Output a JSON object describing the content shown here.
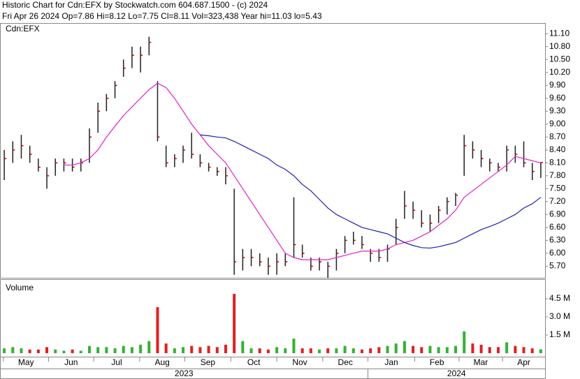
{
  "chart_data": {
    "type": "ohlc",
    "title": "Historic Chart for Cdn:EFX by Stockwatch.com 604.687.1500 - (c) 2024",
    "subtitle": "Fri Apr 26 2024  Op=7.86  Hi=8.12  Lo=7.75  Cl=8.11  Vol=323,438  Year hi=11.03  lo=5.43",
    "symbol_label": "Cdn:EFX",
    "volume_label": "Volume",
    "bar_color": "#202020",
    "close_color": "#c00000",
    "up_color": "#33b233",
    "down_color": "#e02020",
    "xlim": [
      -0.5,
      63.5
    ],
    "high": [
      8.4,
      8.6,
      8.75,
      8.5,
      8.2,
      8.0,
      8.2,
      8.2,
      8.2,
      8.2,
      8.9,
      9.5,
      9.7,
      10.0,
      10.5,
      10.8,
      10.8,
      11.03,
      10.0,
      8.5,
      8.3,
      8.5,
      8.8,
      8.3,
      8.1,
      8.0,
      8.0,
      7.5,
      6.1,
      6.1,
      6.0,
      5.9,
      6.0,
      6.0,
      7.3,
      6.2,
      5.9,
      5.9,
      5.8,
      6.1,
      6.4,
      6.5,
      6.4,
      6.1,
      6.1,
      6.2,
      6.8,
      7.45,
      7.2,
      7.0,
      6.9,
      7.1,
      7.3,
      7.4,
      8.75,
      8.6,
      8.4,
      8.2,
      8.1,
      8.5,
      8.5,
      8.6,
      8.1,
      8.12
    ],
    "low": [
      7.7,
      8.1,
      8.2,
      8.1,
      7.9,
      7.5,
      7.8,
      7.9,
      7.9,
      7.9,
      8.1,
      8.8,
      9.3,
      9.6,
      10.1,
      10.3,
      10.2,
      10.6,
      8.6,
      8.0,
      8.0,
      8.1,
      8.2,
      8.0,
      7.9,
      7.8,
      7.6,
      5.5,
      5.6,
      5.7,
      5.7,
      5.5,
      5.5,
      5.7,
      5.9,
      5.9,
      5.6,
      5.6,
      5.43,
      5.6,
      6.0,
      6.2,
      6.1,
      5.8,
      5.8,
      5.8,
      6.2,
      6.8,
      6.8,
      6.6,
      6.5,
      6.7,
      6.9,
      7.1,
      7.8,
      8.2,
      8.0,
      7.9,
      7.9,
      7.9,
      8.1,
      8.0,
      7.7,
      7.75
    ],
    "close": [
      8.2,
      8.4,
      8.5,
      8.3,
      8.0,
      7.8,
      8.1,
      8.1,
      8.0,
      8.1,
      8.7,
      9.3,
      9.6,
      9.9,
      10.3,
      10.6,
      10.6,
      10.9,
      8.7,
      8.1,
      8.2,
      8.4,
      8.3,
      8.1,
      8.0,
      7.9,
      7.8,
      5.8,
      5.9,
      5.9,
      5.8,
      5.7,
      5.8,
      5.8,
      6.2,
      6.0,
      5.7,
      5.8,
      5.7,
      6.0,
      6.3,
      6.3,
      6.2,
      6.0,
      5.9,
      6.1,
      6.6,
      7.1,
      7.0,
      6.7,
      6.7,
      7.0,
      7.2,
      7.35,
      8.5,
      8.4,
      8.2,
      8.1,
      8.0,
      8.4,
      8.3,
      8.1,
      7.9,
      8.11
    ],
    "volume": [
      0.4,
      0.5,
      0.4,
      0.3,
      0.3,
      0.5,
      0.3,
      0.2,
      0.3,
      0.2,
      0.6,
      0.5,
      0.5,
      0.4,
      0.6,
      0.5,
      0.7,
      1.0,
      3.8,
      0.8,
      0.4,
      0.5,
      0.6,
      0.5,
      0.6,
      0.5,
      0.7,
      4.9,
      1.0,
      0.4,
      0.4,
      0.3,
      0.5,
      0.4,
      1.2,
      0.4,
      0.4,
      0.3,
      0.4,
      0.4,
      0.6,
      0.4,
      0.3,
      0.4,
      0.5,
      0.6,
      0.8,
      1.0,
      0.6,
      0.5,
      0.6,
      0.5,
      0.5,
      0.6,
      1.8,
      0.8,
      0.7,
      0.5,
      0.5,
      0.9,
      0.6,
      0.5,
      0.4,
      0.32
    ],
    "series": [
      {
        "color": "#e020c8",
        "values": [
          null,
          null,
          null,
          null,
          null,
          null,
          null,
          8.05,
          8.05,
          8.1,
          8.2,
          8.4,
          8.7,
          8.95,
          9.2,
          9.4,
          9.6,
          9.8,
          9.95,
          9.85,
          9.6,
          9.3,
          9.0,
          8.75,
          8.5,
          8.3,
          8.1,
          7.8,
          7.5,
          7.2,
          6.9,
          6.6,
          6.3,
          6.0,
          5.9,
          5.85,
          5.85,
          5.85,
          5.85,
          5.9,
          5.95,
          6.0,
          6.05,
          6.05,
          6.05,
          6.1,
          6.2,
          6.25,
          6.3,
          6.4,
          6.5,
          6.65,
          6.8,
          7.0,
          7.3,
          7.45,
          7.6,
          7.75,
          7.9,
          8.05,
          8.25,
          8.2,
          8.15,
          8.1
        ]
      },
      {
        "color": "#2020b0",
        "values": [
          null,
          null,
          null,
          null,
          null,
          null,
          null,
          null,
          null,
          null,
          null,
          null,
          null,
          null,
          null,
          null,
          null,
          null,
          null,
          null,
          null,
          null,
          null,
          8.75,
          8.73,
          8.7,
          8.68,
          8.6,
          8.5,
          8.4,
          8.3,
          8.2,
          8.05,
          7.95,
          7.8,
          7.6,
          7.45,
          7.25,
          7.05,
          6.9,
          6.8,
          6.7,
          6.6,
          6.55,
          6.5,
          6.45,
          6.35,
          6.25,
          6.18,
          6.13,
          6.12,
          6.15,
          6.2,
          6.25,
          6.35,
          6.45,
          6.55,
          6.62,
          6.7,
          6.8,
          6.9,
          7.05,
          7.15,
          7.3
        ]
      }
    ],
    "ylim": [
      5.43,
      11.3
    ],
    "yticks": [
      {
        "value": 5.7,
        "label": "5.70"
      },
      {
        "value": 6.0,
        "label": "6.00"
      },
      {
        "value": 6.3,
        "label": "6.30"
      },
      {
        "value": 6.6,
        "label": "6.60"
      },
      {
        "value": 6.9,
        "label": "6.90"
      },
      {
        "value": 7.2,
        "label": "7.20"
      },
      {
        "value": 7.5,
        "label": "7.50"
      },
      {
        "value": 7.8,
        "label": "7.80"
      },
      {
        "value": 8.1,
        "label": "8.10"
      },
      {
        "value": 8.4,
        "label": "8.40"
      },
      {
        "value": 8.7,
        "label": "8.70"
      },
      {
        "value": 9.0,
        "label": "9.00"
      },
      {
        "value": 9.3,
        "label": "9.30"
      },
      {
        "value": 9.6,
        "label": "9.60"
      },
      {
        "value": 9.9,
        "label": "9.90"
      },
      {
        "value": 10.2,
        "label": "10.20"
      },
      {
        "value": 10.5,
        "label": "10.50"
      },
      {
        "value": 10.8,
        "label": "10.80"
      },
      {
        "value": 11.1,
        "label": "11.10"
      }
    ],
    "y2lim": [
      0,
      5.94
    ],
    "y2ticks": [
      {
        "value": 1.5,
        "label": "1.5 M"
      },
      {
        "value": 3.0,
        "label": "3.0 M"
      },
      {
        "value": 4.5,
        "label": "4.5 M"
      }
    ],
    "xticks": [
      {
        "value": -0.1,
        "label": "May"
      },
      {
        "value": 5.2,
        "label": "Jun"
      },
      {
        "value": 10.5,
        "label": "Jul"
      },
      {
        "value": 15.9,
        "label": "Aug"
      },
      {
        "value": 21.2,
        "label": "Sep"
      },
      {
        "value": 26.6,
        "label": "Oct"
      },
      {
        "value": 32,
        "label": "Nov"
      },
      {
        "value": 37.4,
        "label": "Dec"
      },
      {
        "value": 42.7,
        "label": "Jan"
      },
      {
        "value": 48.2,
        "label": "Feb"
      },
      {
        "value": 53.4,
        "label": "Mar"
      },
      {
        "value": 58.5,
        "label": "Apr"
      }
    ],
    "years": [
      {
        "value": -0.5,
        "label": "2023"
      },
      {
        "value": 42.7,
        "label": "2024"
      }
    ]
  }
}
